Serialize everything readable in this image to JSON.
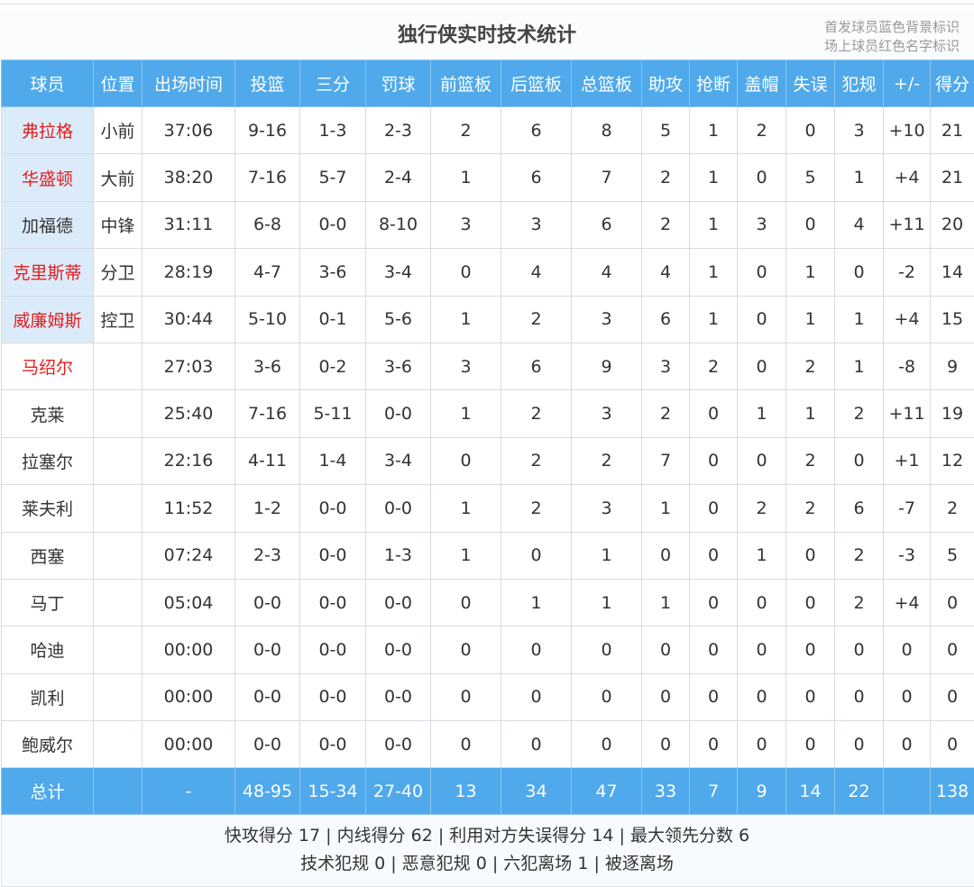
{
  "title": "独行侠实时技术统计",
  "legend": [
    "首发球员蓝色背景标识",
    "场上球员红色名字标识"
  ],
  "colors": {
    "header_bg": "#4fa9ea",
    "starter_bg": "#dcebfa",
    "on_court_name": "#e02020"
  },
  "columns": [
    "球员",
    "位置",
    "出场时间",
    "投篮",
    "三分",
    "罚球",
    "前篮板",
    "后篮板",
    "总篮板",
    "助攻",
    "抢断",
    "盖帽",
    "失误",
    "犯规",
    "+/-",
    "得分"
  ],
  "players": [
    {
      "name": "弗拉格",
      "pos": "小前",
      "starter": true,
      "on_court": true,
      "stats": [
        "37:06",
        "9-16",
        "1-3",
        "2-3",
        "2",
        "6",
        "8",
        "5",
        "1",
        "2",
        "0",
        "3",
        "+10",
        "21"
      ]
    },
    {
      "name": "华盛顿",
      "pos": "大前",
      "starter": true,
      "on_court": true,
      "stats": [
        "38:20",
        "7-16",
        "5-7",
        "2-4",
        "1",
        "6",
        "7",
        "2",
        "1",
        "0",
        "5",
        "1",
        "+4",
        "21"
      ]
    },
    {
      "name": "加福德",
      "pos": "中锋",
      "starter": true,
      "on_court": false,
      "stats": [
        "31:11",
        "6-8",
        "0-0",
        "8-10",
        "3",
        "3",
        "6",
        "2",
        "1",
        "3",
        "0",
        "4",
        "+11",
        "20"
      ]
    },
    {
      "name": "克里斯蒂",
      "pos": "分卫",
      "starter": true,
      "on_court": true,
      "stats": [
        "28:19",
        "4-7",
        "3-6",
        "3-4",
        "0",
        "4",
        "4",
        "4",
        "1",
        "0",
        "1",
        "0",
        "-2",
        "14"
      ]
    },
    {
      "name": "威廉姆斯",
      "pos": "控卫",
      "starter": true,
      "on_court": true,
      "stats": [
        "30:44",
        "5-10",
        "0-1",
        "5-6",
        "1",
        "2",
        "3",
        "6",
        "1",
        "0",
        "1",
        "1",
        "+4",
        "15"
      ]
    },
    {
      "name": "马绍尔",
      "pos": "",
      "starter": false,
      "on_court": true,
      "stats": [
        "27:03",
        "3-6",
        "0-2",
        "3-6",
        "3",
        "6",
        "9",
        "3",
        "2",
        "0",
        "2",
        "1",
        "-8",
        "9"
      ]
    },
    {
      "name": "克莱",
      "pos": "",
      "starter": false,
      "on_court": false,
      "stats": [
        "25:40",
        "7-16",
        "5-11",
        "0-0",
        "1",
        "2",
        "3",
        "2",
        "0",
        "1",
        "1",
        "2",
        "+11",
        "19"
      ]
    },
    {
      "name": "拉塞尔",
      "pos": "",
      "starter": false,
      "on_court": false,
      "stats": [
        "22:16",
        "4-11",
        "1-4",
        "3-4",
        "0",
        "2",
        "2",
        "7",
        "0",
        "0",
        "2",
        "0",
        "+1",
        "12"
      ]
    },
    {
      "name": "莱夫利",
      "pos": "",
      "starter": false,
      "on_court": false,
      "stats": [
        "11:52",
        "1-2",
        "0-0",
        "0-0",
        "1",
        "2",
        "3",
        "1",
        "0",
        "2",
        "2",
        "6",
        "-7",
        "2"
      ]
    },
    {
      "name": "西塞",
      "pos": "",
      "starter": false,
      "on_court": false,
      "stats": [
        "07:24",
        "2-3",
        "0-0",
        "1-3",
        "1",
        "0",
        "1",
        "0",
        "0",
        "1",
        "0",
        "2",
        "-3",
        "5"
      ]
    },
    {
      "name": "马丁",
      "pos": "",
      "starter": false,
      "on_court": false,
      "stats": [
        "05:04",
        "0-0",
        "0-0",
        "0-0",
        "0",
        "1",
        "1",
        "1",
        "0",
        "0",
        "0",
        "2",
        "+4",
        "0"
      ]
    },
    {
      "name": "哈迪",
      "pos": "",
      "starter": false,
      "on_court": false,
      "stats": [
        "00:00",
        "0-0",
        "0-0",
        "0-0",
        "0",
        "0",
        "0",
        "0",
        "0",
        "0",
        "0",
        "0",
        "0",
        "0"
      ]
    },
    {
      "name": "凯利",
      "pos": "",
      "starter": false,
      "on_court": false,
      "stats": [
        "00:00",
        "0-0",
        "0-0",
        "0-0",
        "0",
        "0",
        "0",
        "0",
        "0",
        "0",
        "0",
        "0",
        "0",
        "0"
      ]
    },
    {
      "name": "鲍威尔",
      "pos": "",
      "starter": false,
      "on_court": false,
      "stats": [
        "00:00",
        "0-0",
        "0-0",
        "0-0",
        "0",
        "0",
        "0",
        "0",
        "0",
        "0",
        "0",
        "0",
        "0",
        "0"
      ]
    }
  ],
  "totals": [
    "总计",
    "",
    "-",
    "48-95",
    "15-34",
    "27-40",
    "13",
    "34",
    "47",
    "33",
    "7",
    "9",
    "14",
    "22",
    "",
    "138"
  ],
  "footer": [
    "快攻得分 17 | 内线得分 62 | 利用对方失误得分 14 | 最大领先分数 6",
    "技术犯规 0 | 恶意犯规 0 | 六犯离场 1 | 被逐离场"
  ]
}
